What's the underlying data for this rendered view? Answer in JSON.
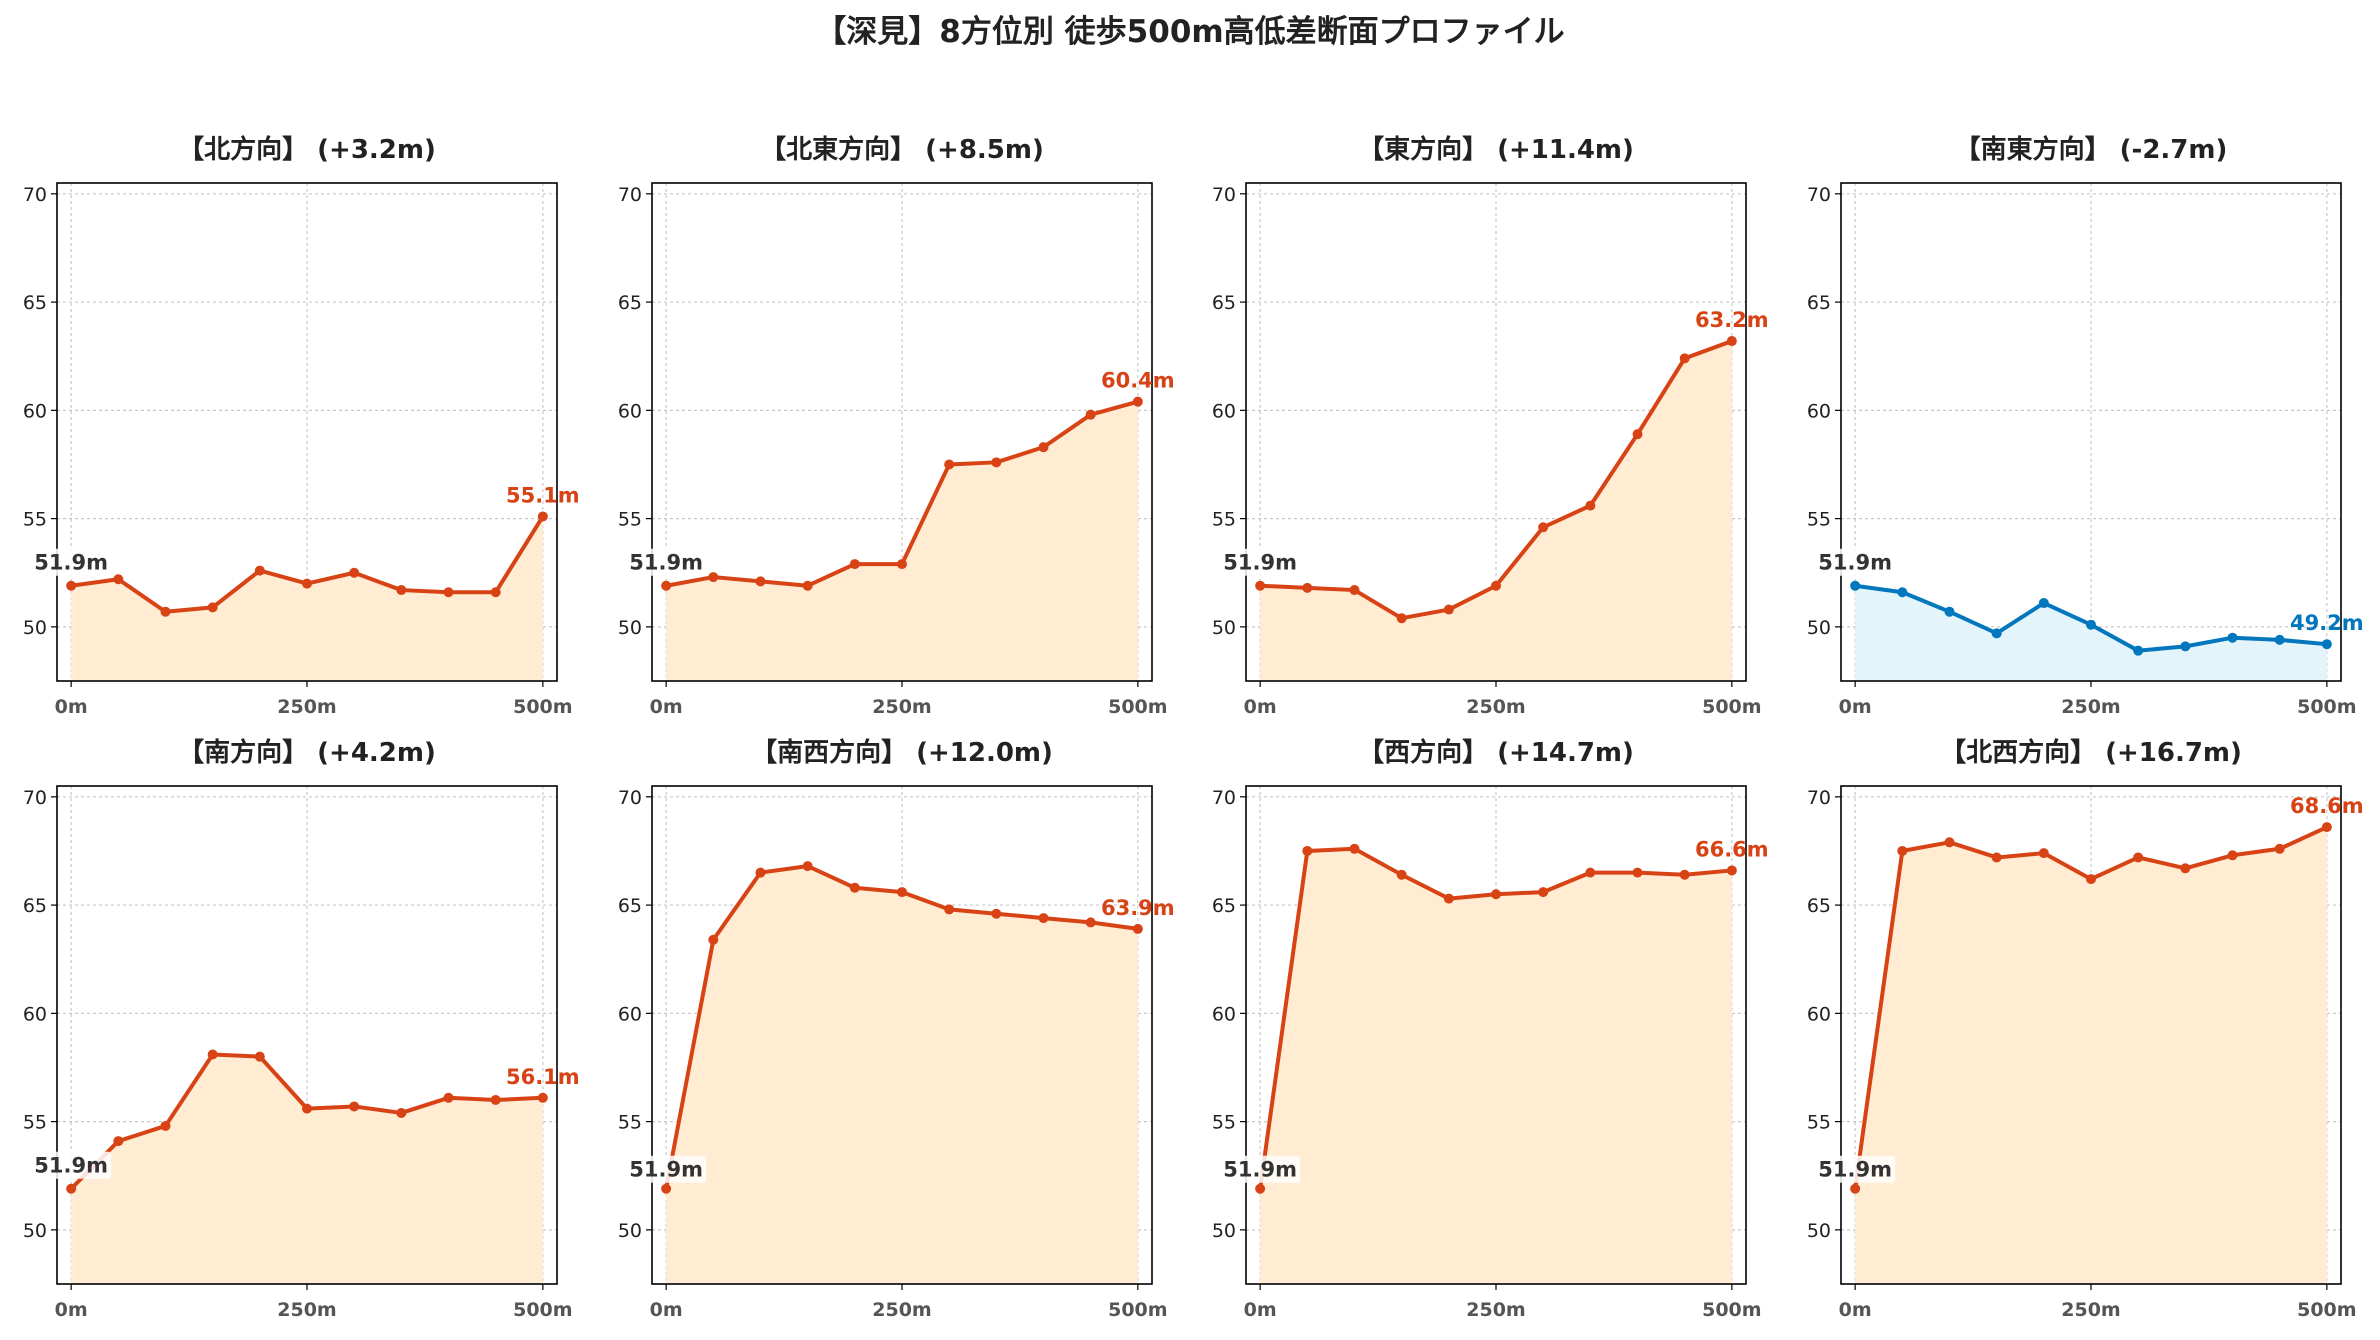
{
  "title": "【深見】8方位別 徒歩500m高低差断面プロファイル",
  "colors": {
    "up_line": "#d84315",
    "up_fill": "#ffecd2",
    "down_line": "#0277bd",
    "down_fill": "#e3f4fb",
    "start_label": "#333333",
    "grid": "#c8c8c8"
  },
  "chart_data": [
    {
      "type": "area",
      "title": "【北方向】 (+3.2m)",
      "trend": "up",
      "x": [
        0,
        50,
        100,
        150,
        200,
        250,
        300,
        350,
        400,
        450,
        500
      ],
      "values": [
        51.9,
        52.2,
        50.7,
        50.9,
        52.6,
        52.0,
        52.5,
        51.7,
        51.6,
        51.6,
        55.1
      ],
      "start_label": "51.9m",
      "end_label": "55.1m",
      "xticks": [
        "0m",
        "250m",
        "500m"
      ],
      "yticks": [
        50,
        55,
        60,
        65,
        70
      ],
      "ylim": [
        47.5,
        70.5
      ],
      "grid": true
    },
    {
      "type": "area",
      "title": "【北東方向】 (+8.5m)",
      "trend": "up",
      "x": [
        0,
        50,
        100,
        150,
        200,
        250,
        300,
        350,
        400,
        450,
        500
      ],
      "values": [
        51.9,
        52.3,
        52.1,
        51.9,
        52.9,
        52.9,
        57.5,
        57.6,
        58.3,
        59.8,
        60.4
      ],
      "start_label": "51.9m",
      "end_label": "60.4m",
      "xticks": [
        "0m",
        "250m",
        "500m"
      ],
      "yticks": [
        50,
        55,
        60,
        65,
        70
      ],
      "ylim": [
        47.5,
        70.5
      ],
      "grid": true
    },
    {
      "type": "area",
      "title": "【東方向】 (+11.4m)",
      "trend": "up",
      "x": [
        0,
        50,
        100,
        150,
        200,
        250,
        300,
        350,
        400,
        450,
        500
      ],
      "values": [
        51.9,
        51.8,
        51.7,
        50.4,
        50.8,
        51.9,
        54.6,
        55.6,
        58.9,
        62.4,
        63.2
      ],
      "start_label": "51.9m",
      "end_label": "63.2m",
      "xticks": [
        "0m",
        "250m",
        "500m"
      ],
      "yticks": [
        50,
        55,
        60,
        65,
        70
      ],
      "ylim": [
        47.5,
        70.5
      ],
      "grid": true
    },
    {
      "type": "area",
      "title": "【南東方向】 (-2.7m)",
      "trend": "down",
      "x": [
        0,
        50,
        100,
        150,
        200,
        250,
        300,
        350,
        400,
        450,
        500
      ],
      "values": [
        51.9,
        51.6,
        50.7,
        49.7,
        51.1,
        50.1,
        48.9,
        49.1,
        49.5,
        49.4,
        49.2
      ],
      "start_label": "51.9m",
      "end_label": "49.2m",
      "xticks": [
        "0m",
        "250m",
        "500m"
      ],
      "yticks": [
        50,
        55,
        60,
        65,
        70
      ],
      "ylim": [
        47.5,
        70.5
      ],
      "grid": true
    },
    {
      "type": "area",
      "title": "【南方向】 (+4.2m)",
      "trend": "up",
      "x": [
        0,
        50,
        100,
        150,
        200,
        250,
        300,
        350,
        400,
        450,
        500
      ],
      "values": [
        51.9,
        54.1,
        54.8,
        58.1,
        58.0,
        55.6,
        55.7,
        55.4,
        56.1,
        56.0,
        56.1
      ],
      "start_label": "51.9m",
      "end_label": "56.1m",
      "xticks": [
        "0m",
        "250m",
        "500m"
      ],
      "yticks": [
        50,
        55,
        60,
        65,
        70
      ],
      "ylim": [
        47.5,
        70.5
      ],
      "grid": true
    },
    {
      "type": "area",
      "title": "【南西方向】 (+12.0m)",
      "trend": "up",
      "x": [
        0,
        50,
        100,
        150,
        200,
        250,
        300,
        350,
        400,
        450,
        500
      ],
      "values": [
        51.9,
        63.4,
        66.5,
        66.8,
        65.8,
        65.6,
        64.8,
        64.6,
        64.4,
        64.2,
        63.9
      ],
      "start_label": "51.9m",
      "end_label": "63.9m",
      "xticks": [
        "0m",
        "250m",
        "500m"
      ],
      "yticks": [
        50,
        55,
        60,
        65,
        70
      ],
      "ylim": [
        47.5,
        70.5
      ],
      "grid": true
    },
    {
      "type": "area",
      "title": "【西方向】 (+14.7m)",
      "trend": "up",
      "x": [
        0,
        50,
        100,
        150,
        200,
        250,
        300,
        350,
        400,
        450,
        500
      ],
      "values": [
        51.9,
        67.5,
        67.6,
        66.4,
        65.3,
        65.5,
        65.6,
        66.5,
        66.5,
        66.4,
        66.6
      ],
      "start_label": "51.9m",
      "end_label": "66.6m",
      "xticks": [
        "0m",
        "250m",
        "500m"
      ],
      "yticks": [
        50,
        55,
        60,
        65,
        70
      ],
      "ylim": [
        47.5,
        70.5
      ],
      "grid": true
    },
    {
      "type": "area",
      "title": "【北西方向】 (+16.7m)",
      "trend": "up",
      "x": [
        0,
        50,
        100,
        150,
        200,
        250,
        300,
        350,
        400,
        450,
        500
      ],
      "values": [
        51.9,
        67.5,
        67.9,
        67.2,
        67.4,
        66.2,
        67.2,
        66.7,
        67.3,
        67.6,
        68.6
      ],
      "start_label": "51.9m",
      "end_label": "68.6m",
      "xticks": [
        "0m",
        "250m",
        "500m"
      ],
      "yticks": [
        50,
        55,
        60,
        65,
        70
      ],
      "ylim": [
        47.5,
        70.5
      ],
      "grid": true
    }
  ]
}
